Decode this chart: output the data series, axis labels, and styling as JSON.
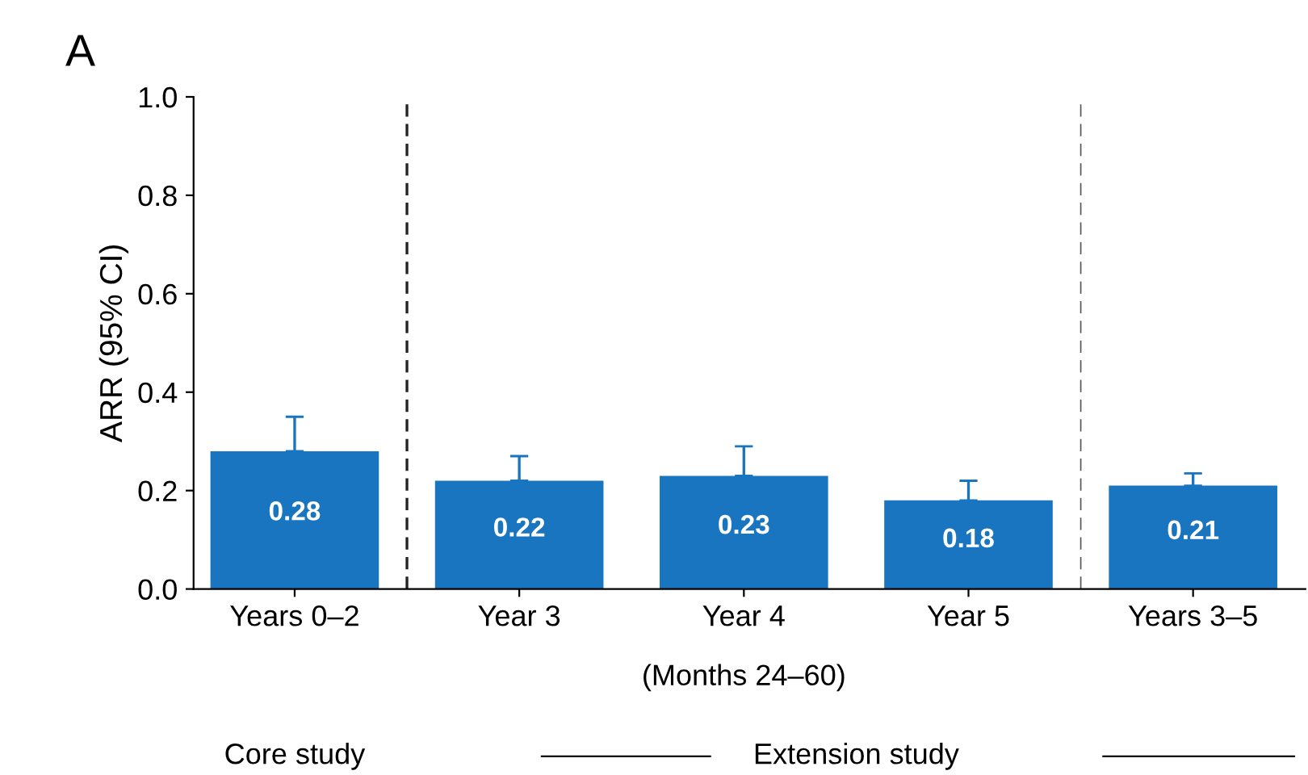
{
  "chart_data": {
    "type": "bar",
    "title": "A",
    "ylabel": "ARR (95% CI)",
    "categories": [
      "Years 0–2",
      "Year 3",
      "Year 4",
      "Year 5",
      "Years 3–5"
    ],
    "values": [
      0.28,
      0.22,
      0.23,
      0.18,
      0.21
    ],
    "errors": [
      [
        0.28,
        0.35
      ],
      [
        0.22,
        0.27
      ],
      [
        0.23,
        0.29
      ],
      [
        0.18,
        0.22
      ],
      [
        0.21,
        0.235
      ]
    ],
    "color": "#1a75c0",
    "data_labels": true,
    "ylim": [
      0,
      1.0
    ],
    "yticks": [
      {
        "value": 0,
        "label": "0.0"
      },
      0.2,
      0.4,
      0.6,
      0.8,
      {
        "value": 1.0,
        "label": "1.0"
      }
    ],
    "annotations": [
      "(Months 24–60)",
      "Core study",
      "Extension study"
    ],
    "grid": false
  }
}
